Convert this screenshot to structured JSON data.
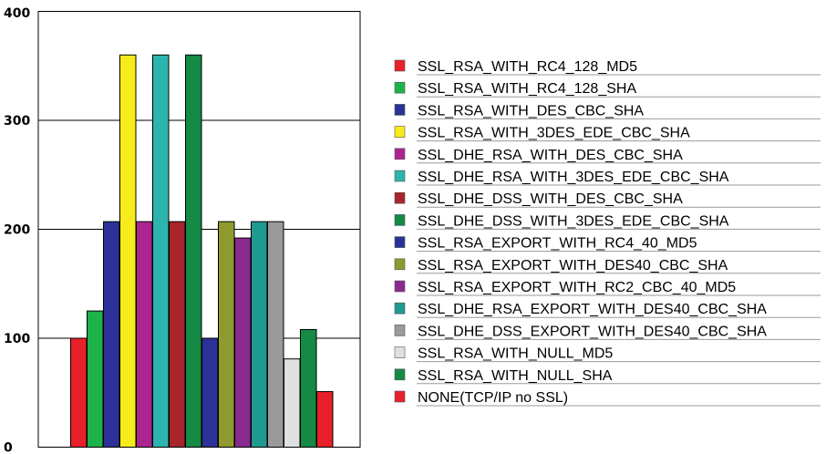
{
  "chart_data": {
    "type": "bar",
    "categories": [
      "SSL_RSA_WITH_RC4_128_MD5",
      "SSL_RSA_WITH_RC4_128_SHA",
      "SSL_RSA_WITH_DES_CBC_SHA",
      "SSL_RSA_WITH_3DES_EDE_CBC_SHA",
      "SSL_DHE_RSA_WITH_DES_CBC_SHA",
      "SSL_DHE_RSA_WITH_3DES_EDE_CBC_SHA",
      "SSL_DHE_DSS_WITH_DES_CBC_SHA",
      "SSL_DHE_DSS_WITH_3DES_EDE_CBC_SHA",
      "SSL_RSA_EXPORT_WITH_RC4_40_MD5",
      "SSL_RSA_EXPORT_WITH_DES40_CBC_SHA",
      "SSL_RSA_EXPORT_WITH_RC2_CBC_40_MD5",
      "SSL_DHE_RSA_EXPORT_WITH_DES40_CBC_SHA",
      "SSL_DHE_DSS_EXPORT_WITH_DES40_CBC_SHA",
      "SSL_RSA_WITH_NULL_MD5",
      "SSL_RSA_WITH_NULL_SHA",
      "NONE(TCP/IP no SSL)"
    ],
    "values": [
      100,
      125,
      207,
      360,
      207,
      360,
      207,
      360,
      100,
      207,
      192,
      207,
      207,
      81,
      108,
      51
    ],
    "colors": [
      "#e8202a",
      "#1db34a",
      "#2b3196",
      "#f7ec1b",
      "#ab2591",
      "#2bb5ae",
      "#a8252b",
      "#148a44",
      "#2b3196",
      "#8f9a2e",
      "#8a2a90",
      "#1f9a91",
      "#9a999b",
      "#dde2e1",
      "#148a44",
      "#e8202a"
    ],
    "yticks": [
      "0",
      "100",
      "200",
      "300",
      "400"
    ],
    "ylim": [
      0,
      400
    ],
    "grid": true,
    "legend_position": "right",
    "title": "",
    "xlabel": "",
    "ylabel": ""
  }
}
